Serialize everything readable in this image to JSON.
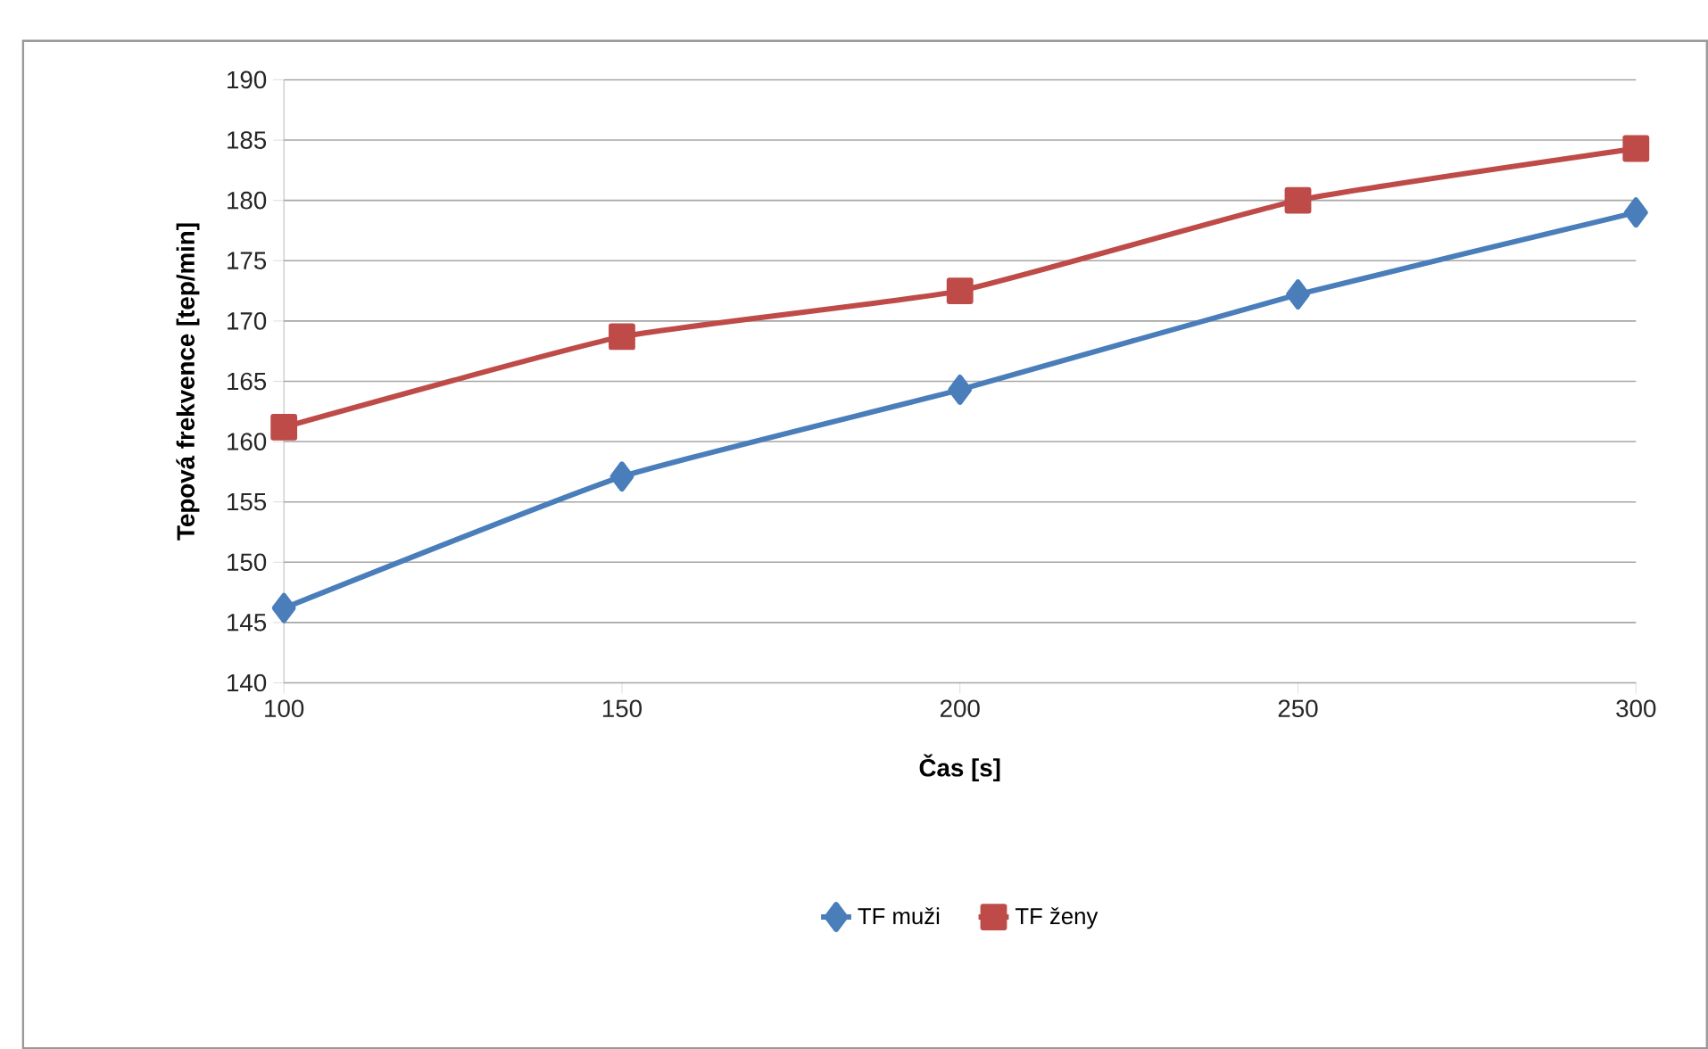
{
  "chart_data": {
    "type": "line",
    "xlabel": "Čas [s]",
    "ylabel": "Tepová frekvence [tep/min]",
    "x": [
      100,
      150,
      200,
      250,
      300
    ],
    "series": [
      {
        "name": "TF muži",
        "color": "#4a7ebb",
        "marker": "diamond",
        "values": [
          146.2,
          157.1,
          164.3,
          172.2,
          179
        ]
      },
      {
        "name": "TF ženy",
        "color": "#be4b48",
        "marker": "square",
        "values": [
          161.2,
          168.7,
          172.5,
          180,
          184.3
        ]
      }
    ],
    "xlim": [
      100,
      300
    ],
    "xticks": [
      100,
      150,
      200,
      250,
      300
    ],
    "ylim": [
      140,
      190
    ],
    "yticks": [
      140,
      145,
      150,
      155,
      160,
      165,
      170,
      175,
      180,
      185,
      190
    ],
    "grid": "y",
    "legend": "bottom",
    "line_style": "solid"
  }
}
